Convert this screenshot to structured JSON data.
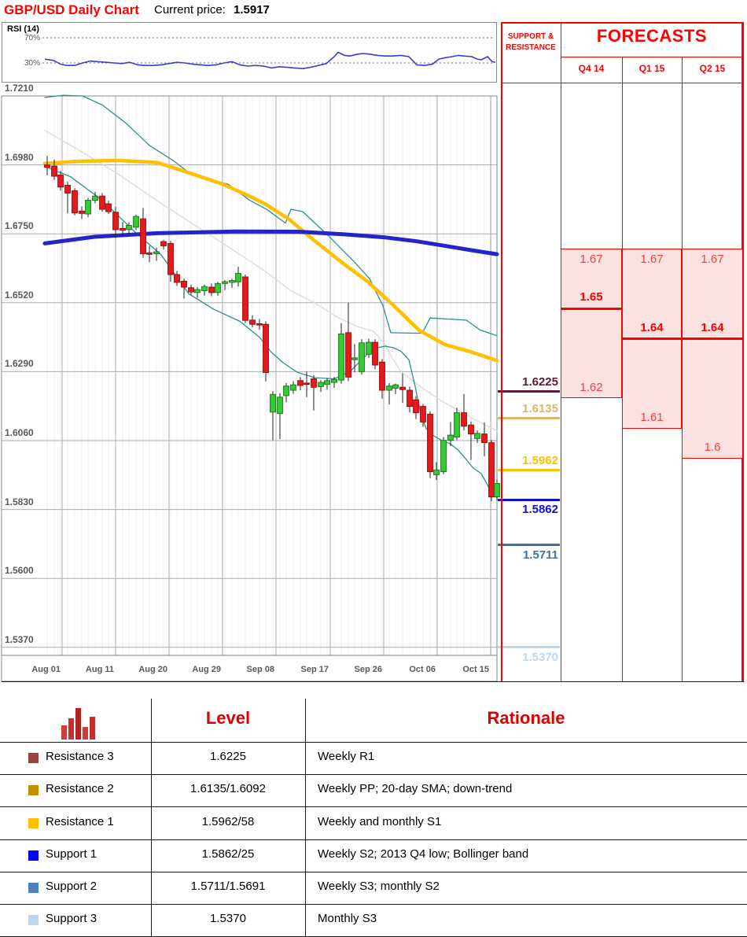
{
  "header": {
    "title": "GBP/USD Daily Chart",
    "current_price_label": "Current price:",
    "current_price": "1.5917"
  },
  "rsi": {
    "label": "RSI (14)",
    "upper_tick": "70%",
    "lower_tick": "30%",
    "line_color": "#3B3BD1"
  },
  "chart_data": {
    "type": "candlestick",
    "title": "GBP/USD Daily Chart",
    "instrument": "GBP/USD",
    "y_axis_labels": [
      "1.7210",
      "1.6980",
      "1.6750",
      "1.6520",
      "1.6290",
      "1.6060",
      "1.5830",
      "1.5600",
      "1.5370"
    ],
    "x_axis_labels": [
      "Aug 01",
      "Aug 11",
      "Aug 20",
      "Aug 29",
      "Sep 08",
      "Sep 17",
      "Sep 26",
      "Oct 06",
      "Oct 15"
    ],
    "ylim": [
      1.5343,
      1.721
    ],
    "grid": true,
    "colors": {
      "up": "#33CC33",
      "up_stroke": "#1D7A1D",
      "down": "#E8191C",
      "down_stroke": "#9B0A0A",
      "wick": "#222222",
      "bollinger": "#2E8F8F",
      "sma20": "#DCDCDC",
      "sma_yellow": "#FFC000",
      "sma_blue": "#2424CC",
      "grid_major": "#ABABAB",
      "grid_minor": "#F0EEF4"
    },
    "candles": [
      [
        60,
        1.698,
        1.701,
        1.6945,
        1.6972
      ],
      [
        69,
        1.6976,
        1.6998,
        1.693,
        1.6942
      ],
      [
        77,
        1.6946,
        1.696,
        1.6894,
        1.6906
      ],
      [
        86,
        1.6912,
        1.6924,
        1.6818,
        1.6886
      ],
      [
        95,
        1.6894,
        1.6902,
        1.6812,
        1.682
      ],
      [
        104,
        1.6826,
        1.6842,
        1.68,
        1.6818
      ],
      [
        112,
        1.6816,
        1.687,
        1.6806,
        1.6862
      ],
      [
        121,
        1.6862,
        1.689,
        1.6852,
        1.6876
      ],
      [
        130,
        1.6876,
        1.6886,
        1.6824,
        1.6832
      ],
      [
        138,
        1.685,
        1.686,
        1.6816,
        1.6824
      ],
      [
        147,
        1.6822,
        1.684,
        1.6736,
        1.6764
      ],
      [
        156,
        1.6768,
        1.679,
        1.6744,
        1.6762
      ],
      [
        164,
        1.6764,
        1.6788,
        1.675,
        1.6778
      ],
      [
        173,
        1.6772,
        1.6814,
        1.6762,
        1.6808
      ],
      [
        182,
        1.68,
        1.6836,
        1.667,
        1.6684
      ],
      [
        190,
        1.6686,
        1.671,
        1.6655,
        1.6682
      ],
      [
        199,
        1.6684,
        1.6704,
        1.666,
        1.669
      ],
      [
        208,
        1.6724,
        1.673,
        1.6698,
        1.671
      ],
      [
        217,
        1.6718,
        1.6726,
        1.659,
        1.6614
      ],
      [
        225,
        1.6614,
        1.6626,
        1.6576,
        1.6588
      ],
      [
        234,
        1.6592,
        1.66,
        1.6534,
        1.6572
      ],
      [
        243,
        1.657,
        1.658,
        1.6546,
        1.6556
      ],
      [
        251,
        1.6554,
        1.6572,
        1.6536,
        1.6564
      ],
      [
        260,
        1.656,
        1.658,
        1.6544,
        1.6574
      ],
      [
        269,
        1.6572,
        1.6584,
        1.6542,
        1.6554
      ],
      [
        277,
        1.6554,
        1.659,
        1.6544,
        1.6584
      ],
      [
        286,
        1.6584,
        1.6596,
        1.6562,
        1.659
      ],
      [
        295,
        1.6588,
        1.66,
        1.657,
        1.6594
      ],
      [
        303,
        1.659,
        1.664,
        1.6574,
        1.6618
      ],
      [
        312,
        1.6606,
        1.6614,
        1.6453,
        1.6461
      ],
      [
        321,
        1.6462,
        1.6478,
        1.6438,
        1.6448
      ],
      [
        330,
        1.645,
        1.6466,
        1.643,
        1.6446
      ],
      [
        338,
        1.6448,
        1.6458,
        1.6258,
        1.6287
      ],
      [
        347,
        1.6155,
        1.6225,
        1.6061,
        1.6214
      ],
      [
        356,
        1.615,
        1.6218,
        1.6065,
        1.6205
      ],
      [
        364,
        1.621,
        1.6252,
        1.6188,
        1.6242
      ],
      [
        373,
        1.6228,
        1.6258,
        1.6216,
        1.6246
      ],
      [
        382,
        1.626,
        1.6272,
        1.6228,
        1.6244
      ],
      [
        390,
        1.6252,
        1.629,
        1.6205,
        1.625
      ],
      [
        399,
        1.6266,
        1.6278,
        1.616,
        1.6238
      ],
      [
        408,
        1.624,
        1.6262,
        1.6222,
        1.6254
      ],
      [
        416,
        1.6248,
        1.6268,
        1.623,
        1.626
      ],
      [
        425,
        1.6254,
        1.6272,
        1.6236,
        1.6264
      ],
      [
        434,
        1.6262,
        1.6452,
        1.625,
        1.6416
      ],
      [
        443,
        1.642,
        1.652,
        1.6258,
        1.6272
      ],
      [
        451,
        1.633,
        1.6382,
        1.6288,
        1.6336
      ],
      [
        460,
        1.629,
        1.6398,
        1.628,
        1.6386
      ],
      [
        469,
        1.6348,
        1.64,
        1.6336,
        1.6388
      ],
      [
        477,
        1.6388,
        1.6398,
        1.6298,
        1.6312
      ],
      [
        486,
        1.6322,
        1.6332,
        1.62,
        1.6228
      ],
      [
        495,
        1.6228,
        1.6252,
        1.618,
        1.6242
      ],
      [
        503,
        1.6235,
        1.625,
        1.6215,
        1.6246
      ],
      [
        512,
        1.6238,
        1.6284,
        1.6186,
        1.623
      ],
      [
        521,
        1.6228,
        1.624,
        1.6154,
        1.6174
      ],
      [
        529,
        1.6196,
        1.6208,
        1.6132,
        1.6153
      ],
      [
        538,
        1.6174,
        1.6182,
        1.6106,
        1.6122
      ],
      [
        547,
        1.6148,
        1.6158,
        1.5935,
        1.5956
      ],
      [
        555,
        1.5946,
        1.5988,
        1.5928,
        1.5962
      ],
      [
        564,
        1.5956,
        1.6072,
        1.5948,
        1.6061
      ],
      [
        573,
        1.6061,
        1.6122,
        1.6042,
        1.6078
      ],
      [
        581,
        1.6072,
        1.617,
        1.6062,
        1.6153
      ],
      [
        590,
        1.6153,
        1.6216,
        1.6094,
        1.6108
      ],
      [
        599,
        1.6112,
        1.6124,
        1.5995,
        1.6082
      ],
      [
        607,
        1.6067,
        1.6094,
        1.6052,
        1.6084
      ],
      [
        616,
        1.6082,
        1.612,
        1.6008,
        1.6053
      ],
      [
        625,
        1.6053,
        1.6062,
        1.5858,
        1.5872
      ],
      [
        632,
        1.5872,
        1.593,
        1.586,
        1.5917
      ]
    ],
    "overlays": {
      "bollinger_upper": [
        [
          57,
          1.7205
        ],
        [
          80,
          1.7212
        ],
        [
          105,
          1.721
        ],
        [
          130,
          1.718
        ],
        [
          160,
          1.712
        ],
        [
          190,
          1.7045
        ],
        [
          220,
          1.6995
        ],
        [
          240,
          1.6955
        ],
        [
          267,
          1.693
        ],
        [
          290,
          1.6916
        ],
        [
          317,
          1.6863
        ],
        [
          340,
          1.683
        ],
        [
          363,
          1.6786
        ],
        [
          370,
          1.6832
        ],
        [
          385,
          1.6824
        ],
        [
          417,
          1.6745
        ],
        [
          450,
          1.6658
        ],
        [
          470,
          1.66
        ],
        [
          487,
          1.651
        ],
        [
          497,
          1.642
        ],
        [
          537,
          1.6418
        ],
        [
          547,
          1.6469
        ],
        [
          593,
          1.6462
        ],
        [
          610,
          1.643
        ],
        [
          632,
          1.641
        ]
      ],
      "bollinger_lower": [
        [
          57,
          1.6975
        ],
        [
          90,
          1.694
        ],
        [
          130,
          1.6862
        ],
        [
          170,
          1.676
        ],
        [
          205,
          1.668
        ],
        [
          240,
          1.655
        ],
        [
          272,
          1.6498
        ],
        [
          305,
          1.6458
        ],
        [
          330,
          1.6405
        ],
        [
          345,
          1.6355
        ],
        [
          360,
          1.632
        ],
        [
          378,
          1.6288
        ],
        [
          400,
          1.627
        ],
        [
          425,
          1.6266
        ],
        [
          445,
          1.629
        ],
        [
          460,
          1.633
        ],
        [
          470,
          1.6355
        ],
        [
          480,
          1.637
        ],
        [
          490,
          1.6375
        ],
        [
          500,
          1.637
        ],
        [
          510,
          1.6358
        ],
        [
          520,
          1.633
        ],
        [
          528,
          1.624
        ],
        [
          535,
          1.615
        ],
        [
          542,
          1.61
        ],
        [
          552,
          1.6075
        ],
        [
          562,
          1.606
        ],
        [
          572,
          1.605
        ],
        [
          582,
          1.603
        ],
        [
          592,
          1.6
        ],
        [
          602,
          1.5968
        ],
        [
          612,
          1.595
        ],
        [
          620,
          1.5912
        ],
        [
          626,
          1.588
        ],
        [
          632,
          1.587
        ]
      ],
      "sma20_gray": [
        [
          57,
          1.7095
        ],
        [
          100,
          1.703
        ],
        [
          150,
          1.695
        ],
        [
          200,
          1.686
        ],
        [
          250,
          1.6775
        ],
        [
          300,
          1.669
        ],
        [
          340,
          1.662
        ],
        [
          370,
          1.656
        ],
        [
          400,
          1.652
        ],
        [
          430,
          1.647
        ],
        [
          455,
          1.644
        ],
        [
          475,
          1.6425
        ],
        [
          490,
          1.638
        ],
        [
          500,
          1.633
        ],
        [
          510,
          1.629
        ],
        [
          525,
          1.626
        ],
        [
          540,
          1.623
        ],
        [
          560,
          1.6195
        ],
        [
          580,
          1.6165
        ],
        [
          600,
          1.6135
        ],
        [
          615,
          1.6115
        ],
        [
          632,
          1.6092
        ]
      ],
      "sma_yellow": [
        [
          57,
          1.6985
        ],
        [
          100,
          1.6992
        ],
        [
          150,
          1.6995
        ],
        [
          200,
          1.6988
        ],
        [
          233,
          1.696
        ],
        [
          283,
          1.6916
        ],
        [
          317,
          1.6876
        ],
        [
          337,
          1.685
        ],
        [
          367,
          1.68
        ],
        [
          400,
          1.6727
        ],
        [
          433,
          1.6658
        ],
        [
          467,
          1.6592
        ],
        [
          500,
          1.6512
        ],
        [
          533,
          1.6428
        ],
        [
          566,
          1.638
        ],
        [
          600,
          1.6355
        ],
        [
          632,
          1.6327
        ]
      ],
      "sma_blue": [
        [
          57,
          1.6718
        ],
        [
          120,
          1.674
        ],
        [
          200,
          1.6752
        ],
        [
          300,
          1.6758
        ],
        [
          380,
          1.6757
        ],
        [
          440,
          1.6748
        ],
        [
          490,
          1.6738
        ],
        [
          530,
          1.6725
        ],
        [
          570,
          1.6708
        ],
        [
          600,
          1.6695
        ],
        [
          632,
          1.6682
        ]
      ]
    },
    "rsi_series": [
      [
        57,
        36
      ],
      [
        68,
        34
      ],
      [
        77,
        28
      ],
      [
        85,
        26
      ],
      [
        95,
        26
      ],
      [
        105,
        30
      ],
      [
        115,
        33
      ],
      [
        125,
        32
      ],
      [
        135,
        31
      ],
      [
        145,
        30
      ],
      [
        155,
        29
      ],
      [
        165,
        31
      ],
      [
        175,
        27
      ],
      [
        185,
        26
      ],
      [
        195,
        26
      ],
      [
        205,
        27
      ],
      [
        215,
        29
      ],
      [
        225,
        31
      ],
      [
        235,
        30
      ],
      [
        245,
        28
      ],
      [
        255,
        27
      ],
      [
        265,
        26
      ],
      [
        275,
        27
      ],
      [
        285,
        30
      ],
      [
        295,
        32
      ],
      [
        305,
        27
      ],
      [
        315,
        25
      ],
      [
        325,
        26
      ],
      [
        335,
        25
      ],
      [
        345,
        22
      ],
      [
        355,
        24
      ],
      [
        365,
        23
      ],
      [
        375,
        22
      ],
      [
        385,
        21
      ],
      [
        395,
        23
      ],
      [
        405,
        26
      ],
      [
        415,
        29
      ],
      [
        425,
        40
      ],
      [
        430,
        47
      ],
      [
        438,
        42
      ],
      [
        445,
        41
      ],
      [
        455,
        44
      ],
      [
        462,
        45
      ],
      [
        470,
        44
      ],
      [
        480,
        42
      ],
      [
        490,
        41
      ],
      [
        500,
        41
      ],
      [
        510,
        42
      ],
      [
        520,
        40
      ],
      [
        530,
        27
      ],
      [
        540,
        26
      ],
      [
        550,
        28
      ],
      [
        558,
        36
      ],
      [
        565,
        38
      ],
      [
        575,
        40
      ],
      [
        583,
        42
      ],
      [
        590,
        41
      ],
      [
        600,
        40
      ],
      [
        607,
        36
      ],
      [
        612,
        35
      ],
      [
        620,
        40
      ],
      [
        626,
        32
      ],
      [
        630,
        31
      ]
    ]
  },
  "sr_panel": {
    "header_line1": "SUPPORT &",
    "header_line2": "RESISTANCE",
    "levels": [
      {
        "value": "1.6225",
        "color": "#5C1A38",
        "label_side": "above"
      },
      {
        "value": "1.6135",
        "color": "#D9B66A",
        "label_side": "above"
      },
      {
        "value": "1.5962",
        "color": "#FFC000",
        "label_side": "above"
      },
      {
        "value": "1.5862",
        "color": "#0F0FD6",
        "label_side": "below"
      },
      {
        "value": "1.5711",
        "color": "#41719C",
        "label_side": "below"
      },
      {
        "value": "1.5370",
        "color": "#BDD7EE",
        "label_side": "below"
      }
    ]
  },
  "forecasts": {
    "title": "FORECASTS",
    "box_fill": "#FCE1E1",
    "accent": "#FF0000",
    "columns": [
      {
        "label": "Q4 14",
        "high": "1.67",
        "point": "1.65",
        "low": "1.62"
      },
      {
        "label": "Q1 15",
        "high": "1.67",
        "point": "1.64",
        "low": "1.61"
      },
      {
        "label": "Q2 15",
        "high": "1.67",
        "point": "1.64",
        "low": "1.6"
      }
    ]
  },
  "table": {
    "headers": {
      "level": "Level",
      "rationale": "Rationale"
    },
    "rows": [
      {
        "label": "Resistance 3",
        "swatch": "#9E4040",
        "level": "1.6225",
        "rationale": "Weekly R1"
      },
      {
        "label": "Resistance 2",
        "swatch": "#BF9000",
        "level": "1.6135/1.6092",
        "rationale": "Weekly PP; 20-day SMA; down-trend"
      },
      {
        "label": "Resistance 1",
        "swatch": "#FFC000",
        "level": "1.5962/58",
        "rationale": "Weekly and monthly S1"
      },
      {
        "label": "Support 1",
        "swatch": "#0000FF",
        "level": "1.5862/25",
        "rationale": "Weekly S2; 2013 Q4 low; Bollinger band"
      },
      {
        "label": "Support 2",
        "swatch": "#4F81BD",
        "level": "1.5711/1.5691",
        "rationale": "Weekly S3; monthly S2"
      },
      {
        "label": "Support 3",
        "swatch": "#BDD7EE",
        "level": "1.5370",
        "rationale": "Monthly S3"
      }
    ]
  }
}
